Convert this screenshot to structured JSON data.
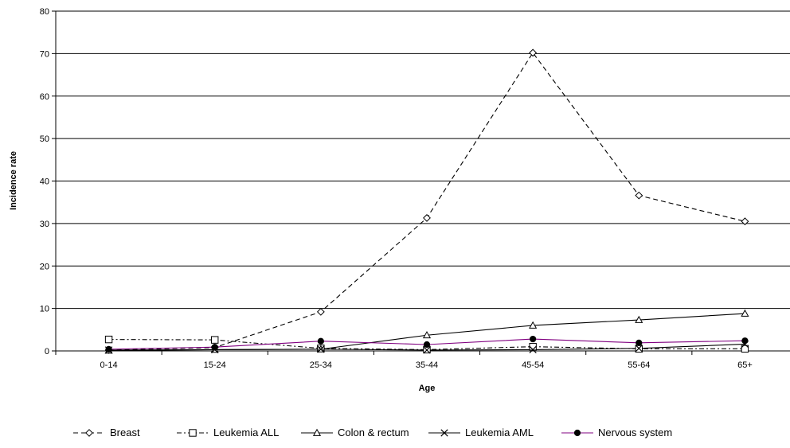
{
  "chart_data": {
    "type": "line",
    "title": "",
    "xlabel": "Age",
    "ylabel": "Incidence rate",
    "categories": [
      "0-14",
      "15-24",
      "25-34",
      "35-44",
      "45-54",
      "55-64",
      "65+"
    ],
    "ylim": [
      0,
      80
    ],
    "yticks": [
      0,
      10,
      20,
      30,
      40,
      50,
      60,
      70,
      80
    ],
    "grid": "horizontal",
    "legend": "bottom",
    "series": [
      {
        "name": "Breast",
        "values": [
          0.2,
          0.8,
          9.2,
          31.3,
          70.2,
          36.6,
          30.5
        ],
        "color": "#000000",
        "dash": "dashed",
        "marker": "diamond-open"
      },
      {
        "name": "Leukemia ALL",
        "values": [
          2.7,
          2.6,
          0.6,
          0.3,
          1.0,
          0.5,
          0.5
        ],
        "color": "#000000",
        "dash": "dash-dot",
        "marker": "square-open"
      },
      {
        "name": "Colon & rectum",
        "values": [
          0.1,
          0.3,
          0.4,
          3.7,
          6.0,
          7.3,
          8.8
        ],
        "color": "#000000",
        "dash": "solid",
        "marker": "triangle-open"
      },
      {
        "name": "Leukemia AML",
        "values": [
          0.2,
          0.3,
          0.4,
          0.2,
          0.3,
          0.6,
          1.6
        ],
        "color": "#000000",
        "dash": "solid",
        "marker": "x"
      },
      {
        "name": "Nervous system",
        "values": [
          0.4,
          0.9,
          2.3,
          1.5,
          2.8,
          1.9,
          2.4
        ],
        "color": "#800080",
        "dash": "solid",
        "marker": "circle-filled"
      }
    ]
  }
}
